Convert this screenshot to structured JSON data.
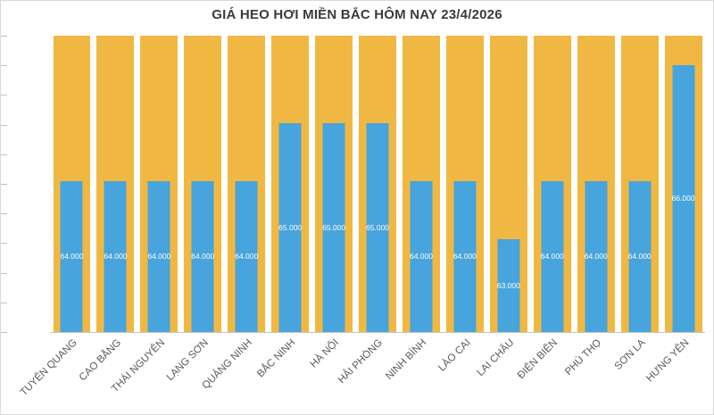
{
  "chart_data": {
    "type": "bar",
    "title": "GIÁ HEO HƠI MIỀN BẮC HÔM NAY 23/4/2026",
    "xlabel": "",
    "ylabel": "",
    "categories": [
      "TUYÊN QUANG",
      "CAO BẰNG",
      "THÁI NGUYÊN",
      "LẠNG SƠN",
      "QUẢNG NINH",
      "BẮC NINH",
      "HÀ NỘI",
      "HẢI PHÒNG",
      "NINH BÌNH",
      "LÀO CAI",
      "LAI CHÂU",
      "ĐIỆN BIÊN",
      "PHÚ THỌ",
      "SƠN LA",
      "HƯNG YÊN"
    ],
    "values": [
      64000,
      64000,
      64000,
      64000,
      64000,
      65000,
      65000,
      65000,
      64000,
      64000,
      63000,
      64000,
      64000,
      64000,
      66000
    ],
    "labels": [
      "64.000",
      "64.000",
      "64.000",
      "64.000",
      "64.000",
      "65.000",
      "65.000",
      "65.000",
      "64.000",
      "64.000",
      "63.000",
      "64.000",
      "64.000",
      "64.000",
      "66.000"
    ],
    "ylim": [
      61400,
      66500
    ],
    "grid": false,
    "legend": "none",
    "colors": {
      "bar": "#47A4DD",
      "background_bar": "#F0B843",
      "label_text": "#FFFFFF",
      "axis_text": "#595959",
      "title_text": "#3B3B3B"
    }
  }
}
